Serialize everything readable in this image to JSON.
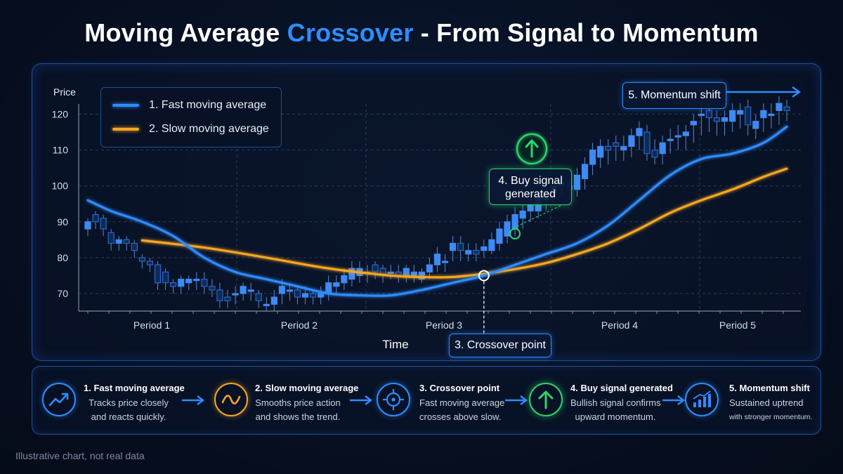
{
  "title": {
    "part1": "Moving Average ",
    "accent": "Crossover",
    "part2": " - From Signal to Momentum"
  },
  "colors": {
    "fast": "#2f8cff",
    "slow": "#f5a623",
    "green": "#2fd36e",
    "candle_up": "#2f7fe8",
    "candle_down": "#1f5fbf",
    "grid": "#2a3a58"
  },
  "chart_data": {
    "type": "line",
    "title": "Moving Average Crossover - From Signal to Momentum",
    "xlabel": "Time",
    "ylabel": "Price",
    "ylim": [
      66,
      123
    ],
    "yticks": [
      70,
      80,
      90,
      100,
      110,
      120
    ],
    "periods": [
      "Period 1",
      "Period 2",
      "Period 3",
      "Period 4",
      "Period 5"
    ],
    "grid": true,
    "legend_position": "top-left",
    "series": [
      {
        "name": "1. Fast moving average",
        "x": [
          1,
          4,
          8,
          12,
          16,
          20,
          24,
          28,
          32,
          36,
          40,
          44,
          48,
          52,
          56,
          60,
          64,
          68,
          72,
          76,
          80,
          84,
          88,
          91
        ],
        "values": [
          96,
          93,
          90,
          86,
          80,
          76,
          74,
          72,
          70,
          69.5,
          69.5,
          71,
          73,
          75,
          78,
          81,
          84,
          89,
          96,
          103,
          107.5,
          109,
          112,
          116.5
        ]
      },
      {
        "name": "2. Slow moving average",
        "x": [
          8,
          16,
          24,
          32,
          40,
          44,
          48,
          52,
          56,
          60,
          64,
          68,
          72,
          76,
          80,
          84,
          88,
          91
        ],
        "values": [
          84.8,
          82.8,
          80,
          77,
          75,
          74.6,
          74.6,
          75.5,
          76.8,
          78.5,
          81,
          84,
          88,
          92.5,
          96,
          99,
          102.5,
          104.8
        ]
      }
    ],
    "candles": {
      "x": [
        1,
        2,
        3,
        4,
        5,
        6,
        7,
        8,
        9,
        10,
        11,
        12,
        13,
        14,
        15,
        16,
        17,
        18,
        19,
        20,
        21,
        22,
        23,
        24,
        25,
        26,
        27,
        28,
        29,
        30,
        31,
        32,
        33,
        34,
        35,
        36,
        37,
        38,
        39,
        40,
        41,
        42,
        43,
        44,
        45,
        46,
        47,
        48,
        49,
        50,
        51,
        52,
        53,
        54,
        55,
        56,
        57,
        58,
        59,
        60,
        61,
        62,
        63,
        64,
        65,
        66,
        67,
        68,
        69,
        70,
        71,
        72,
        73,
        74,
        75,
        76,
        77,
        78,
        79,
        80,
        81,
        82,
        83,
        84,
        85,
        86,
        87,
        88,
        89,
        90,
        91
      ],
      "open": [
        88,
        92,
        91,
        87,
        84,
        85,
        84,
        80,
        79,
        78,
        76,
        73,
        72,
        73,
        74,
        74,
        72,
        71,
        69,
        70,
        70,
        71,
        70,
        67,
        67,
        70,
        71,
        71,
        69,
        70,
        69,
        70,
        72,
        73,
        74,
        75,
        76,
        78,
        77,
        76,
        76,
        75,
        75,
        74,
        76,
        78,
        79,
        82,
        84,
        81,
        82,
        82,
        82,
        84,
        86,
        88,
        91,
        93,
        93,
        96,
        98,
        100,
        100,
        99,
        102,
        106,
        108,
        111,
        112,
        110,
        111,
        114,
        115,
        110,
        109,
        113,
        114,
        114,
        117,
        120,
        121,
        119,
        118,
        118,
        120,
        122,
        116,
        119,
        120,
        121,
        122
      ],
      "close": [
        90,
        90,
        88,
        84,
        85,
        84,
        82,
        79,
        78,
        73,
        73,
        72,
        74,
        74,
        74,
        72,
        71,
        68,
        68,
        70,
        72,
        71,
        68,
        67,
        69,
        72,
        71,
        69,
        70,
        69,
        70,
        73,
        73,
        75,
        77,
        77,
        76,
        76,
        75,
        76,
        75,
        77,
        76,
        76,
        78,
        81,
        79,
        84,
        82,
        82,
        81,
        83,
        85,
        88,
        90,
        92,
        93,
        95,
        97,
        98,
        100,
        101,
        99,
        103,
        106,
        110,
        111,
        110,
        111,
        111,
        114,
        116,
        109,
        108,
        112,
        113,
        114,
        115,
        118,
        120,
        119,
        118,
        119,
        121,
        121,
        117,
        118,
        121,
        120,
        123,
        121
      ],
      "high": [
        91,
        93,
        92,
        88,
        86,
        86,
        85,
        81,
        80,
        79,
        77,
        74,
        75,
        75,
        76,
        76,
        74,
        73,
        71,
        72,
        73,
        73,
        71,
        69,
        71,
        74,
        73,
        72,
        72,
        71,
        72,
        75,
        75,
        77,
        79,
        79,
        78,
        79,
        78,
        78,
        78,
        78,
        78,
        77,
        80,
        83,
        81,
        86,
        86,
        84,
        84,
        85,
        87,
        90,
        92,
        94,
        95,
        97,
        99,
        100,
        102,
        103,
        102,
        105,
        108,
        112,
        113,
        113,
        114,
        114,
        116,
        118,
        117,
        113,
        114,
        116,
        117,
        117,
        120,
        123,
        123,
        121,
        121,
        123,
        123,
        124,
        120,
        123,
        123,
        125,
        124
      ],
      "low": [
        86,
        88,
        86,
        82,
        82,
        82,
        80,
        77,
        76,
        71,
        71,
        70,
        70,
        71,
        71,
        70,
        69,
        66,
        66,
        67,
        68,
        68,
        66,
        65,
        65,
        67,
        68,
        67,
        67,
        67,
        67,
        68,
        70,
        71,
        72,
        73,
        73,
        74,
        73,
        74,
        73,
        73,
        73,
        73,
        74,
        76,
        76,
        79,
        79,
        79,
        79,
        80,
        81,
        82,
        84,
        86,
        88,
        90,
        91,
        93,
        95,
        97,
        96,
        97,
        99,
        103,
        105,
        106,
        107,
        107,
        108,
        110,
        107,
        106,
        106,
        109,
        110,
        110,
        112,
        114,
        115,
        114,
        114,
        115,
        116,
        114,
        113,
        115,
        116,
        117,
        118
      ]
    },
    "annotations": [
      {
        "label": "3. Crossover point",
        "x": 52,
        "y": 75
      },
      {
        "label": "4. Buy signal generated",
        "x": 56,
        "y": 89
      },
      {
        "label": "5. Momentum shift",
        "x": 88,
        "y": 121
      }
    ]
  },
  "chart_text": {
    "ylabel": "Price",
    "xlabel": "Time",
    "periods": [
      "Period 1",
      "Period 2",
      "Period 3",
      "Period 4",
      "Period 5"
    ],
    "yticks": [
      "70",
      "80",
      "90",
      "100",
      "110",
      "120"
    ]
  },
  "legend": {
    "fast": "1. Fast moving average",
    "slow": "2. Slow moving average"
  },
  "callouts": {
    "crossover": "3. Crossover point",
    "buy_line1": "4. Buy signal",
    "buy_line2": "generated",
    "momentum": "5. Momentum shift"
  },
  "steps": [
    {
      "title": "1. Fast moving average",
      "desc1": "Tracks price closely",
      "desc2": "and reacts quickly.",
      "icon": "trend-up-icon"
    },
    {
      "title": "2. Slow moving average",
      "desc1": "Smooths price action",
      "desc2": "and shows the trend.",
      "icon": "wave-icon"
    },
    {
      "title": "3. Crossover point",
      "desc1": "Fast moving average",
      "desc2": "crosses above slow.",
      "icon": "crosshair-icon"
    },
    {
      "title": "4. Buy signal generated",
      "desc1": "Bullish signal confirms",
      "desc2": "upward momentum.",
      "icon": "arrow-up-icon"
    },
    {
      "title": "5. Momentum shift",
      "desc1": "Sustained uptrend",
      "desc2": "with stronger momentum.",
      "icon": "bar-chart-icon"
    }
  ],
  "footnote": "Illustrative chart, not real data"
}
